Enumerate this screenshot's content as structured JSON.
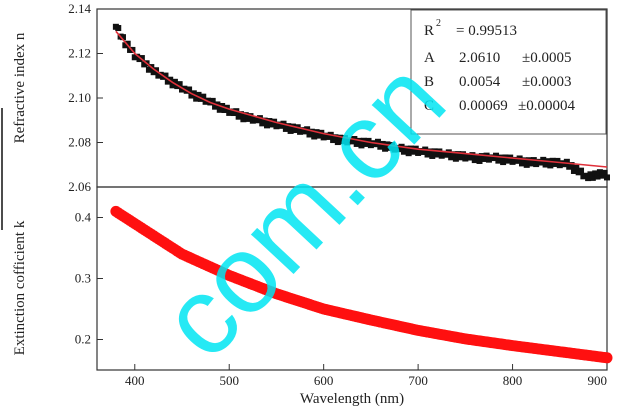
{
  "watermark": "com.cn",
  "colors": {
    "top_data": "#111111",
    "fit_line": "#e0303a",
    "bottom_data": "#ff1010",
    "watermark": "#00e5f2"
  },
  "chart_data": [
    {
      "type": "scatter",
      "ylabel": "Refractive index n",
      "ylim": [
        2.06,
        2.14
      ],
      "xlim": [
        360,
        900
      ],
      "yticks": [
        "2.06",
        "2.08",
        "2.10",
        "2.12",
        "2.14"
      ],
      "ytick_values": [
        2.06,
        2.08,
        2.1,
        2.12,
        2.14
      ],
      "marker": "square",
      "series": [
        {
          "role": "data",
          "x": [
            380,
            390,
            400,
            410,
            420,
            440,
            460,
            480,
            500,
            520,
            540,
            560,
            580,
            600,
            620,
            640,
            660,
            680,
            700,
            720,
            740,
            760,
            780,
            800,
            820,
            840,
            860,
            870,
            880,
            890,
            900
          ],
          "y": [
            2.132,
            2.125,
            2.119,
            2.116,
            2.112,
            2.107,
            2.102,
            2.098,
            2.094,
            2.091,
            2.089,
            2.087,
            2.085,
            2.083,
            2.081,
            2.08,
            2.079,
            2.077,
            2.076,
            2.075,
            2.074,
            2.073,
            2.073,
            2.072,
            2.071,
            2.071,
            2.07,
            2.067,
            2.064,
            2.066,
            2.065
          ]
        },
        {
          "role": "fit",
          "x": [
            380,
            400,
            420,
            440,
            460,
            480,
            500,
            550,
            600,
            650,
            700,
            750,
            800,
            850,
            900
          ],
          "y": [
            2.13,
            2.12,
            2.113,
            2.107,
            2.102,
            2.098,
            2.095,
            2.089,
            2.084,
            2.08,
            2.077,
            2.075,
            2.073,
            2.071,
            2.069
          ]
        }
      ],
      "annotation": {
        "r2_label": "R",
        "r2_sup": "2",
        "r2_value": "=  0.99513",
        "rows": [
          {
            "name": "A",
            "value": "2.0610",
            "error": "±0.0005"
          },
          {
            "name": "B",
            "value": "0.0054",
            "error": "±0.0003"
          },
          {
            "name": "C",
            "value": "0.00069",
            "error": "±0.00004"
          }
        ]
      }
    },
    {
      "type": "scatter",
      "ylabel": "Extinction cofficient k",
      "xlabel": "Wavelength (nm)",
      "ylim": [
        0.15,
        0.45
      ],
      "xlim": [
        360,
        900
      ],
      "xticks": [
        "400",
        "500",
        "600",
        "700",
        "800",
        "900"
      ],
      "xtick_values": [
        400,
        500,
        600,
        700,
        800,
        900
      ],
      "yticks": [
        "0.2",
        "0.3",
        "0.4"
      ],
      "ytick_values": [
        0.2,
        0.3,
        0.4
      ],
      "marker": "circle",
      "series": [
        {
          "role": "data",
          "x": [
            380,
            400,
            420,
            450,
            500,
            550,
            600,
            650,
            700,
            750,
            800,
            850,
            900
          ],
          "y": [
            0.41,
            0.39,
            0.37,
            0.34,
            0.305,
            0.275,
            0.25,
            0.232,
            0.215,
            0.201,
            0.19,
            0.18,
            0.17
          ]
        }
      ]
    }
  ]
}
